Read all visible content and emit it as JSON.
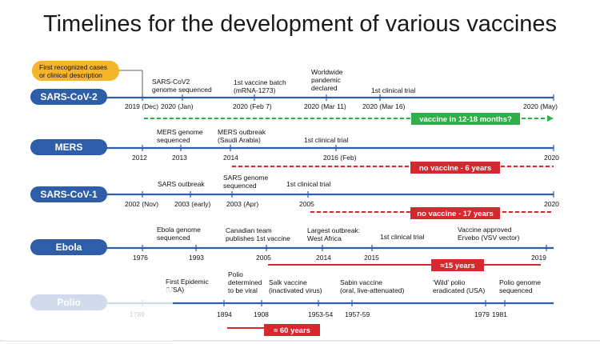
{
  "title": "Timelines for the development of various vaccines",
  "colors": {
    "pill": "#2e5ea8",
    "line": "#2e5ea8",
    "green": "#2fae4a",
    "red": "#d7282f",
    "callout": "#f5b52a"
  },
  "callout": {
    "line1": "First recognized cases",
    "line2": "or clinical description"
  },
  "rows": [
    {
      "name": "SARS-CoV-2",
      "events": [
        {
          "lines": [
            "SARS-CoV2",
            "genome sequenced"
          ]
        },
        {
          "lines": [
            "1st vaccine batch",
            "(mRNA-1273)"
          ]
        },
        {
          "lines": [
            "Worldwide",
            "pandemic",
            "declared"
          ]
        },
        {
          "lines": [
            "1st clinical trial"
          ]
        }
      ],
      "years": [
        "2019 (Dec)",
        "2020 (Jan)",
        "2020 (Feb 7)",
        "2020 (Mar 11)",
        "2020 (Mar 16)",
        "2020 (May)"
      ],
      "bar": {
        "label": "vaccine in 12-18 months?",
        "color": "green"
      }
    },
    {
      "name": "MERS",
      "events": [
        {
          "lines": [
            "MERS genome",
            "sequenced"
          ]
        },
        {
          "lines": [
            "MERS outbreak",
            "(Saudi Arabia)"
          ]
        },
        {
          "lines": [
            "1st clinical trial"
          ]
        }
      ],
      "years": [
        "2012",
        "2013",
        "2014",
        "2016 (Feb)",
        "2020"
      ],
      "bar": {
        "label": "no vaccine - 6 years",
        "color": "red"
      }
    },
    {
      "name": "SARS-CoV-1",
      "events": [
        {
          "lines": [
            "SARS outbreak"
          ]
        },
        {
          "lines": [
            "SARS genome",
            "sequenced"
          ]
        },
        {
          "lines": [
            "1st clinical trial"
          ]
        }
      ],
      "years": [
        "2002 (Nov)",
        "2003 (early)",
        "2003 (Apr)",
        "2005",
        "2020"
      ],
      "bar": {
        "label": "no vaccine - 17 years",
        "color": "red"
      }
    },
    {
      "name": "Ebola",
      "events": [
        {
          "lines": [
            "Ebola genome",
            "sequenced"
          ]
        },
        {
          "lines": [
            "Canadian team",
            "publishes 1st vaccine"
          ]
        },
        {
          "lines": [
            "Largest outbreak:",
            "West Africa"
          ]
        },
        {
          "lines": [
            "1st clinical trial"
          ]
        },
        {
          "lines": [
            "Vaccine approved",
            "Ervebo (VSV vector)"
          ]
        }
      ],
      "years": [
        "1976",
        "1993",
        "2005",
        "2014",
        "2015",
        "2019"
      ],
      "bar": {
        "label": "≈15 years",
        "color": "red"
      }
    },
    {
      "name": "Polio",
      "events": [
        {
          "lines": [
            "First Epidemic",
            "(USA)"
          ]
        },
        {
          "lines": [
            "Polio",
            "determined",
            "to be viral"
          ]
        },
        {
          "lines": [
            "Salk vaccine",
            "(inactivated virus)"
          ]
        },
        {
          "lines": [
            "Sabin vaccine",
            "(oral, live-attenuated)"
          ]
        },
        {
          "lines": [
            "‘Wild’ polio",
            "eradicated (USA)"
          ]
        },
        {
          "lines": [
            "Polio genome",
            "sequenced"
          ]
        }
      ],
      "years": [
        "1789",
        "1894",
        "1908",
        "1953-54",
        "1957-59",
        "1979",
        "1981"
      ],
      "bar": {
        "label": "≈ 60 years",
        "color": "red"
      }
    }
  ]
}
